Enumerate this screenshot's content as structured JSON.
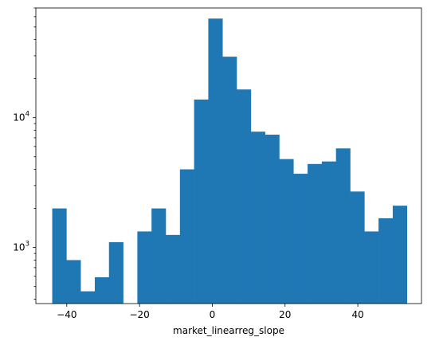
{
  "chart_data": {
    "type": "bar",
    "subtype": "histogram",
    "xlabel": "market_linearreg_slope",
    "ylabel": "",
    "title": "",
    "yscale": "log",
    "xlim": [
      -48.5,
      57.5
    ],
    "ylim": [
      370,
      70000
    ],
    "x_ticks": [
      -40,
      -20,
      0,
      20,
      40
    ],
    "x_tick_labels": [
      "−40",
      "−20",
      "0",
      "20",
      "40"
    ],
    "y_ticks": [
      1000,
      10000
    ],
    "y_tick_labels": [
      {
        "base": "10",
        "exp": "3"
      },
      {
        "base": "10",
        "exp": "4"
      }
    ],
    "bar_color": "#1f77b4",
    "bins": [
      {
        "x0": -44.0,
        "x1": -40.1,
        "count": 2000
      },
      {
        "x0": -40.1,
        "x1": -36.2,
        "count": 800
      },
      {
        "x0": -36.2,
        "x1": -32.3,
        "count": 460
      },
      {
        "x0": -32.3,
        "x1": -28.4,
        "count": 590
      },
      {
        "x0": -28.4,
        "x1": -24.5,
        "count": 1100
      },
      {
        "x0": -24.5,
        "x1": -20.6,
        "count": 0
      },
      {
        "x0": -20.6,
        "x1": -16.7,
        "count": 1330
      },
      {
        "x0": -16.7,
        "x1": -12.8,
        "count": 2000
      },
      {
        "x0": -12.8,
        "x1": -8.9,
        "count": 1250
      },
      {
        "x0": -8.9,
        "x1": -5.0,
        "count": 4000
      },
      {
        "x0": -5.0,
        "x1": -1.1,
        "count": 13800
      },
      {
        "x0": -1.1,
        "x1": 2.8,
        "count": 58000
      },
      {
        "x0": 2.8,
        "x1": 6.7,
        "count": 29500
      },
      {
        "x0": 6.7,
        "x1": 10.6,
        "count": 16500
      },
      {
        "x0": 10.6,
        "x1": 14.5,
        "count": 7800
      },
      {
        "x0": 14.5,
        "x1": 18.4,
        "count": 7400
      },
      {
        "x0": 18.4,
        "x1": 22.3,
        "count": 4800
      },
      {
        "x0": 22.3,
        "x1": 26.2,
        "count": 3700
      },
      {
        "x0": 26.2,
        "x1": 30.1,
        "count": 4400
      },
      {
        "x0": 30.1,
        "x1": 34.0,
        "count": 4600
      },
      {
        "x0": 34.0,
        "x1": 37.9,
        "count": 5800
      },
      {
        "x0": 37.9,
        "x1": 41.8,
        "count": 2700
      },
      {
        "x0": 41.8,
        "x1": 45.7,
        "count": 1330
      },
      {
        "x0": 45.7,
        "x1": 49.6,
        "count": 1680
      },
      {
        "x0": 49.6,
        "x1": 53.5,
        "count": 2100
      }
    ]
  }
}
